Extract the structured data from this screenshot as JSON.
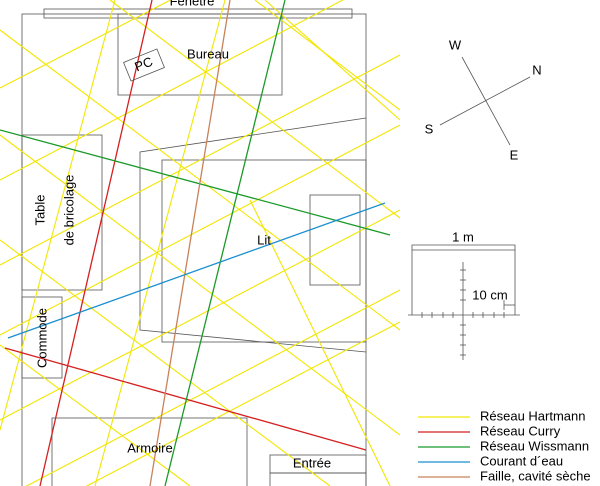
{
  "plan": {
    "window": "Fenêtre",
    "desk": "Bureau",
    "pc": "PC",
    "workbench": [
      "Table",
      "de bricolage"
    ],
    "bed": "Lit",
    "dresser": "Commode",
    "wardrobe": "Armoire",
    "entrance": "Entrée"
  },
  "compass": {
    "w": "W",
    "n": "N",
    "s": "S",
    "e": "E"
  },
  "scale": {
    "meter": "1 m",
    "decimeter": "10 cm"
  },
  "legend": [
    {
      "label": "Réseau Hartmann",
      "color": "#f2e600"
    },
    {
      "label": "Réseau Curry",
      "color": "#d42020"
    },
    {
      "label": "Réseau Wissmann",
      "color": "#1a9a2a"
    },
    {
      "label": "Courant d´eau",
      "color": "#1a8fd0"
    },
    {
      "label": "Faille, cavité sèche",
      "color": "#c8825a"
    }
  ]
}
